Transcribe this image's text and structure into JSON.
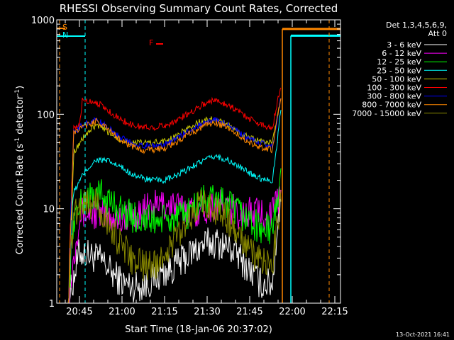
{
  "chart_data": {
    "type": "line",
    "title": "RHESSI Observing Summary Count Rates, Corrected",
    "xlabel": "Start Time (18-Jan-06 20:37:02)",
    "ylabel_main": "Corrected Count Rate (s",
    "ylabel_sup1": "-1",
    "ylabel_mid": " detector",
    "ylabel_sup2": "-1",
    "ylabel_end": ")",
    "yscale": "log",
    "ylim": [
      1,
      1000
    ],
    "xlim_minutes": [
      0,
      100
    ],
    "x_ticks": [
      {
        "m": 8,
        "label": "20:45"
      },
      {
        "m": 23,
        "label": "21:00"
      },
      {
        "m": 38,
        "label": "21:15"
      },
      {
        "m": 53,
        "label": "21:30"
      },
      {
        "m": 68,
        "label": "21:45"
      },
      {
        "m": 83,
        "label": "22:00"
      },
      {
        "m": 98,
        "label": "22:15"
      }
    ],
    "y_ticks": [
      {
        "v": 1,
        "label": "1"
      },
      {
        "v": 10,
        "label": "10"
      },
      {
        "v": 100,
        "label": "100"
      },
      {
        "v": 1000,
        "label": "1000"
      }
    ],
    "legend_header": [
      "Det 1,3,4,5,6,9,",
      "Att 0"
    ],
    "series": [
      {
        "name": "3 - 6 keV",
        "color": "#ffffff",
        "points": [
          [
            0,
            1
          ],
          [
            4,
            1
          ],
          [
            8,
            3.5
          ],
          [
            12,
            3.2
          ],
          [
            16,
            2.8
          ],
          [
            20,
            2.0
          ],
          [
            24,
            1.6
          ],
          [
            28,
            1.5
          ],
          [
            32,
            1.6
          ],
          [
            36,
            2.0
          ],
          [
            40,
            2.3
          ],
          [
            44,
            2.8
          ],
          [
            48,
            3.5
          ],
          [
            52,
            4.2
          ],
          [
            56,
            4.4
          ],
          [
            60,
            4.0
          ],
          [
            64,
            3.2
          ],
          [
            68,
            2.2
          ],
          [
            72,
            1.6
          ],
          [
            76,
            1.6
          ],
          [
            78,
            8
          ],
          [
            79,
            10
          ]
        ]
      },
      {
        "name": "6 - 12 keV",
        "color": "#ff00ff",
        "points": [
          [
            0,
            1
          ],
          [
            4,
            1
          ],
          [
            8,
            9
          ],
          [
            12,
            9
          ],
          [
            16,
            8.5
          ],
          [
            20,
            8
          ],
          [
            24,
            8
          ],
          [
            28,
            8.5
          ],
          [
            32,
            10
          ],
          [
            36,
            11
          ],
          [
            40,
            11
          ],
          [
            44,
            10
          ],
          [
            48,
            9.5
          ],
          [
            52,
            10
          ],
          [
            56,
            11
          ],
          [
            60,
            10.5
          ],
          [
            64,
            9
          ],
          [
            68,
            9
          ],
          [
            72,
            9
          ],
          [
            76,
            9
          ],
          [
            78,
            12
          ],
          [
            79,
            15
          ]
        ]
      },
      {
        "name": "12 - 25 keV",
        "color": "#00ff00",
        "points": [
          [
            0,
            1
          ],
          [
            4,
            1
          ],
          [
            6,
            8
          ],
          [
            10,
            13
          ],
          [
            16,
            14
          ],
          [
            20,
            11
          ],
          [
            24,
            9
          ],
          [
            28,
            8
          ],
          [
            32,
            7.5
          ],
          [
            36,
            7.5
          ],
          [
            40,
            7.5
          ],
          [
            44,
            8
          ],
          [
            48,
            10
          ],
          [
            52,
            12.5
          ],
          [
            56,
            13
          ],
          [
            60,
            11
          ],
          [
            64,
            9
          ],
          [
            68,
            7.5
          ],
          [
            72,
            6
          ],
          [
            76,
            6
          ],
          [
            78,
            14
          ],
          [
            79,
            25
          ]
        ]
      },
      {
        "name": "25 - 50 keV",
        "color": "#00ffff",
        "points": [
          [
            0,
            1
          ],
          [
            4,
            1
          ],
          [
            6,
            15
          ],
          [
            10,
            25
          ],
          [
            14,
            33
          ],
          [
            18,
            32
          ],
          [
            22,
            28
          ],
          [
            26,
            24
          ],
          [
            30,
            21
          ],
          [
            34,
            20
          ],
          [
            38,
            20
          ],
          [
            42,
            22
          ],
          [
            46,
            26
          ],
          [
            50,
            31
          ],
          [
            54,
            34
          ],
          [
            56,
            36
          ],
          [
            60,
            33
          ],
          [
            64,
            28
          ],
          [
            68,
            24
          ],
          [
            72,
            21
          ],
          [
            76,
            20
          ],
          [
            78,
            60
          ],
          [
            79,
            120
          ]
        ]
      },
      {
        "name": "50 - 100 keV",
        "color": "#cccc00",
        "points": [
          [
            0,
            1
          ],
          [
            4,
            1
          ],
          [
            6,
            40
          ],
          [
            10,
            60
          ],
          [
            14,
            77
          ],
          [
            18,
            65
          ],
          [
            22,
            55
          ],
          [
            26,
            50
          ],
          [
            30,
            50
          ],
          [
            34,
            50
          ],
          [
            38,
            52
          ],
          [
            42,
            58
          ],
          [
            46,
            70
          ],
          [
            50,
            82
          ],
          [
            54,
            88
          ],
          [
            56,
            87
          ],
          [
            60,
            78
          ],
          [
            64,
            65
          ],
          [
            68,
            56
          ],
          [
            72,
            52
          ],
          [
            76,
            50
          ],
          [
            78,
            100
          ],
          [
            79,
            150
          ]
        ]
      },
      {
        "name": "100 - 300 keV",
        "color": "#ff0000",
        "points": [
          [
            0,
            1
          ],
          [
            4,
            1
          ],
          [
            6,
            70
          ],
          [
            8,
            75
          ],
          [
            9,
            140
          ],
          [
            14,
            135
          ],
          [
            18,
            110
          ],
          [
            22,
            90
          ],
          [
            26,
            78
          ],
          [
            30,
            73
          ],
          [
            34,
            73
          ],
          [
            38,
            76
          ],
          [
            42,
            85
          ],
          [
            46,
            100
          ],
          [
            50,
            120
          ],
          [
            54,
            138
          ],
          [
            56,
            140
          ],
          [
            60,
            128
          ],
          [
            64,
            108
          ],
          [
            68,
            90
          ],
          [
            72,
            78
          ],
          [
            76,
            72
          ],
          [
            78,
            150
          ],
          [
            79,
            200
          ]
        ]
      },
      {
        "name": "300 - 800 keV",
        "color": "#0000ff",
        "points": [
          [
            0,
            1
          ],
          [
            4,
            1
          ],
          [
            6,
            65
          ],
          [
            10,
            80
          ],
          [
            14,
            88
          ],
          [
            18,
            72
          ],
          [
            22,
            58
          ],
          [
            26,
            50
          ],
          [
            30,
            47
          ],
          [
            34,
            46
          ],
          [
            38,
            48
          ],
          [
            42,
            55
          ],
          [
            46,
            65
          ],
          [
            50,
            76
          ],
          [
            54,
            85
          ],
          [
            56,
            87
          ],
          [
            60,
            78
          ],
          [
            64,
            65
          ],
          [
            68,
            54
          ],
          [
            72,
            49
          ],
          [
            76,
            46
          ],
          [
            78,
            100
          ],
          [
            79,
            150
          ]
        ]
      },
      {
        "name": "800 - 7000 keV",
        "color": "#ff8800",
        "points": [
          [
            0,
            1
          ],
          [
            4,
            1
          ],
          [
            6,
            65
          ],
          [
            10,
            75
          ],
          [
            14,
            85
          ],
          [
            18,
            70
          ],
          [
            22,
            55
          ],
          [
            26,
            46
          ],
          [
            30,
            42
          ],
          [
            34,
            42
          ],
          [
            38,
            44
          ],
          [
            42,
            50
          ],
          [
            46,
            60
          ],
          [
            50,
            70
          ],
          [
            54,
            80
          ],
          [
            56,
            82
          ],
          [
            60,
            72
          ],
          [
            64,
            60
          ],
          [
            68,
            50
          ],
          [
            72,
            45
          ],
          [
            76,
            42
          ],
          [
            78,
            100
          ],
          [
            79,
            150
          ]
        ]
      },
      {
        "name": "7000 - 15000 keV",
        "color": "#888800",
        "points": [
          [
            0,
            1
          ],
          [
            4,
            1
          ],
          [
            6,
            9
          ],
          [
            8,
            11
          ],
          [
            10,
            12
          ],
          [
            14,
            11
          ],
          [
            18,
            7
          ],
          [
            22,
            4.5
          ],
          [
            26,
            3
          ],
          [
            30,
            2.5
          ],
          [
            34,
            2.5
          ],
          [
            38,
            3.2
          ],
          [
            42,
            5
          ],
          [
            46,
            8
          ],
          [
            50,
            10.5
          ],
          [
            54,
            11
          ],
          [
            56,
            10
          ],
          [
            60,
            8
          ],
          [
            64,
            5
          ],
          [
            68,
            3.5
          ],
          [
            72,
            2.8
          ],
          [
            76,
            2.6
          ],
          [
            78,
            8
          ],
          [
            79,
            12
          ]
        ]
      }
    ],
    "flags": [
      {
        "label": "S",
        "color": "#ff8800",
        "start": 0,
        "end": 3
      },
      {
        "label": "N",
        "color": "#00ffff",
        "start": 0,
        "end": 10
      },
      {
        "label": "F",
        "color": "#ff0000",
        "start": 35,
        "end": 37.5
      }
    ],
    "vlines": [
      {
        "m": 1,
        "color": "#ff8800",
        "dashed": true
      },
      {
        "m": 10,
        "color": "#00ffff",
        "dashed": true
      },
      {
        "m": 96,
        "color": "#ff8800",
        "dashed": true
      }
    ],
    "gap": {
      "start": 79.5,
      "end": 82.5
    },
    "post_gap_levels": [
      {
        "color": "#ff8800",
        "value": 800,
        "start": 79.5,
        "end": 100
      },
      {
        "color": "#00ffff",
        "value": 680,
        "start": 82.5,
        "end": 100
      }
    ]
  },
  "footer": {
    "timestamp": "13-Oct-2021 16:41"
  }
}
